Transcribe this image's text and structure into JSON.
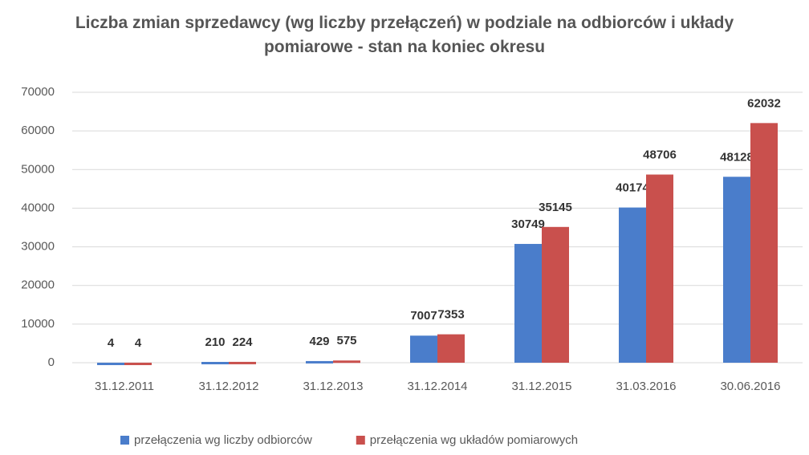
{
  "chart_data": {
    "type": "bar",
    "title": "Liczba zmian sprzedawcy (wg liczby przełączeń) w podziale na odbiorców i układy pomiarowe - stan na koniec okresu",
    "categories": [
      "31.12.2011",
      "31.12.2012",
      "31.12.2013",
      "31.12.2014",
      "31.12.2015",
      "31.03.2016",
      "30.06.2016"
    ],
    "series": [
      {
        "name": "przełączenia wg liczby odbiorców",
        "color": "#4a7dcb",
        "values": [
          4,
          210,
          429,
          7007,
          30749,
          40174,
          48128
        ]
      },
      {
        "name": "przełączenia wg układów pomiarowych",
        "color": "#c9504d",
        "values": [
          4,
          224,
          575,
          7353,
          35145,
          48706,
          62032
        ]
      }
    ],
    "ylim": [
      0,
      70000
    ],
    "yticks": [
      0,
      10000,
      20000,
      30000,
      40000,
      50000,
      60000,
      70000
    ],
    "grid": true,
    "legend": "bottom"
  }
}
